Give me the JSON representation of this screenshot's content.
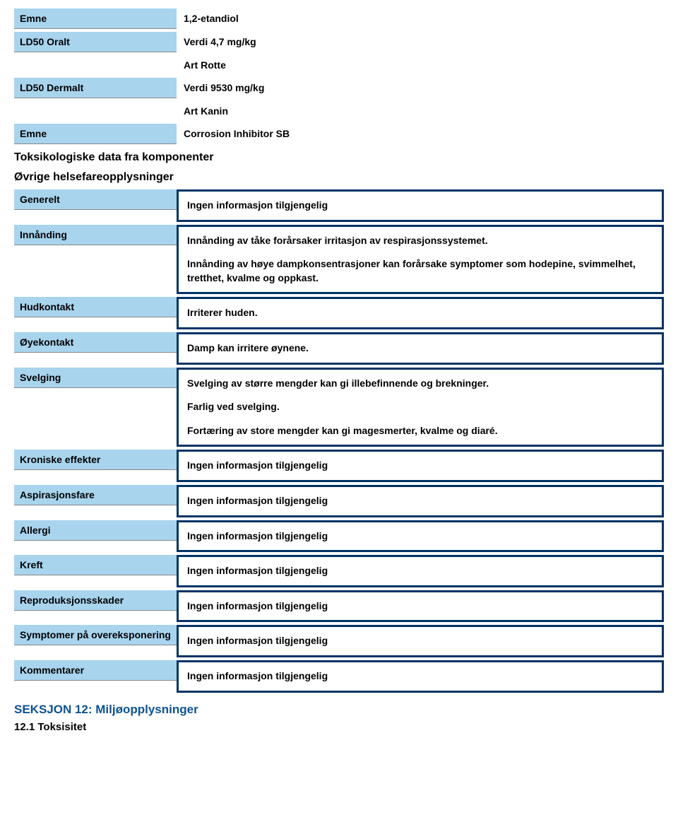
{
  "colors": {
    "label_bg": "#a8d4ed",
    "box_border": "#003366",
    "section_blue": "#0b5394"
  },
  "top": {
    "emne1_label": "Emne",
    "emne1_value": "1,2-etandiol",
    "ld50_oralt_label": "LD50 Oralt",
    "ld50_oralt_value": "Verdi 4,7 mg/kg",
    "art_rotte": "Art Rotte",
    "ld50_dermalt_label": "LD50 Dermalt",
    "ld50_dermalt_value": "Verdi 9530 mg/kg",
    "art_kanin": "Art Kanin",
    "emne2_label": "Emne",
    "emne2_value": "Corrosion Inhibitor SB"
  },
  "headings": {
    "toks": "Toksikologiske data fra komponenter",
    "ovrige": "Øvrige helsefareopplysninger",
    "seksjon12": "SEKSJON 12: Miljøopplysninger",
    "toksisitet": "12.1 Toksisitet"
  },
  "rows": {
    "generelt": {
      "label": "Generelt",
      "value": "Ingen informasjon tilgjengelig"
    },
    "innanding": {
      "label": "Innånding",
      "p1": "Innånding av tåke forårsaker irritasjon av respirasjonssystemet.",
      "p2": "Innånding av høye dampkonsentrasjoner kan forårsake symptomer som hodepine, svimmelhet, tretthet, kvalme og oppkast."
    },
    "hudkontakt": {
      "label": "Hudkontakt",
      "value": "Irriterer huden."
    },
    "oyekontakt": {
      "label": "Øyekontakt",
      "value": "Damp kan irritere øynene."
    },
    "svelging": {
      "label": "Svelging",
      "p1": "Svelging av større mengder kan gi illebefinnende og brekninger.",
      "p2": "Farlig ved svelging.",
      "p3": "Fortæring av store mengder kan gi magesmerter, kvalme og diaré."
    },
    "kroniske": {
      "label": "Kroniske effekter",
      "value": "Ingen informasjon tilgjengelig"
    },
    "aspirasjon": {
      "label": "Aspirasjonsfare",
      "value": "Ingen informasjon tilgjengelig"
    },
    "allergi": {
      "label": "Allergi",
      "value": "Ingen informasjon tilgjengelig"
    },
    "kreft": {
      "label": "Kreft",
      "value": "Ingen informasjon tilgjengelig"
    },
    "reproduksjon": {
      "label": "Reproduksjonsskader",
      "value": "Ingen informasjon tilgjengelig"
    },
    "symptomer": {
      "label": "Symptomer på overeksponering",
      "value": "Ingen informasjon tilgjengelig"
    },
    "kommentarer": {
      "label": "Kommentarer",
      "value": "Ingen informasjon tilgjengelig"
    }
  }
}
